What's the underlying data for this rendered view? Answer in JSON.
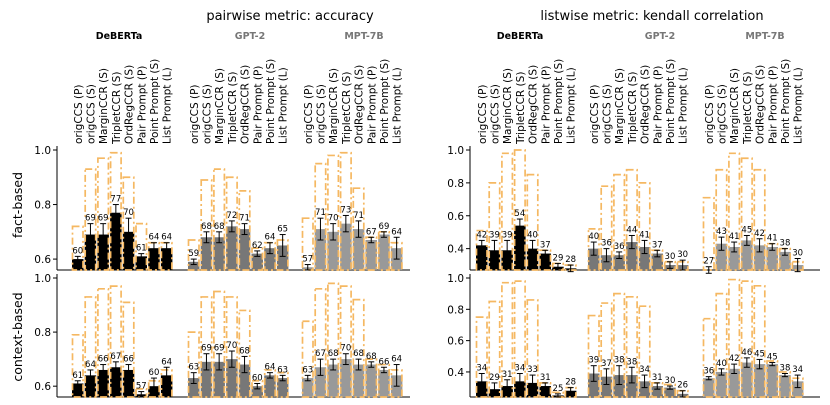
{
  "chart_data": {
    "type": "bar",
    "models": [
      {
        "name": "DeBERTa",
        "color": "#000000"
      },
      {
        "name": "GPT-2",
        "color": "#777777"
      },
      {
        "name": "MPT-7B",
        "color": "#999999"
      }
    ],
    "methods": [
      "origCCS (P)",
      "origCCS (S)",
      "MarginCCR (S)",
      "TripletCCR (S)",
      "OrdRegCCR (S)",
      "Pair Prompt (P)",
      "Point Prompt (S)",
      "List Prompt (L)"
    ],
    "columns": [
      {
        "title": "pairwise metric: accuracy"
      },
      {
        "title": "listwise metric: kendall correlation"
      }
    ],
    "rows": [
      {
        "label": "fact-based"
      },
      {
        "label": "context-based"
      }
    ],
    "panels": [
      {
        "row": 0,
        "col": 0,
        "ylim": [
          0.56,
          1.0
        ],
        "yticks": [
          0.6,
          0.8,
          1.0
        ],
        "ytick_labels": [
          "0.6",
          "0.8",
          "1.0"
        ],
        "groups": [
          {
            "values": [
              0.6,
              0.69,
              0.69,
              0.77,
              0.7,
              0.61,
              0.64,
              0.64
            ],
            "labels": [
              "60",
              "69",
              "69",
              "77",
              "70",
              "61",
              "64",
              "64"
            ],
            "errors": [
              0.01,
              0.04,
              0.04,
              0.03,
              0.05,
              0.01,
              0.02,
              0.02
            ],
            "upper": [
              0.72,
              0.93,
              0.97,
              0.99,
              0.9,
              0.73,
              0.66,
              0.66
            ]
          },
          {
            "values": [
              0.59,
              0.68,
              0.68,
              0.72,
              0.71,
              0.62,
              0.64,
              0.65
            ],
            "labels": [
              "59",
              "68",
              "68",
              "72",
              "71",
              "62",
              "64",
              "65"
            ],
            "errors": [
              0.01,
              0.02,
              0.02,
              0.02,
              0.02,
              0.01,
              0.02,
              0.04
            ],
            "upper": [
              0.67,
              0.89,
              0.93,
              0.9,
              0.85,
              0.64,
              0.66,
              0.67
            ]
          },
          {
            "values": [
              0.57,
              0.71,
              0.7,
              0.73,
              0.71,
              0.67,
              0.69,
              0.64
            ],
            "labels": [
              "57",
              "71",
              "70",
              "73",
              "71",
              "67",
              "69",
              "64"
            ],
            "errors": [
              0.01,
              0.04,
              0.03,
              0.03,
              0.03,
              0.01,
              0.01,
              0.04
            ],
            "upper": [
              0.75,
              0.95,
              0.98,
              0.99,
              0.86,
              0.68,
              0.7,
              0.66
            ]
          }
        ]
      },
      {
        "row": 0,
        "col": 1,
        "ylim": [
          0.27,
          1.0
        ],
        "yticks": [
          0.4,
          0.6,
          0.8,
          1.0
        ],
        "ytick_labels": [
          "0.4",
          "0.6",
          "0.8",
          "1.0"
        ],
        "groups": [
          {
            "values": [
              0.42,
              0.39,
              0.39,
              0.54,
              0.4,
              0.37,
              0.29,
              0.28
            ],
            "labels": [
              "42",
              "39",
              "39",
              "54",
              "40",
              "37",
              "29",
              "28"
            ],
            "errors": [
              0.03,
              0.06,
              0.06,
              0.04,
              0.05,
              0.02,
              0.02,
              0.02
            ],
            "upper": [
              0.51,
              0.8,
              0.98,
              1.0,
              0.85,
              0.39,
              0.31,
              0.3
            ]
          },
          {
            "values": [
              0.4,
              0.36,
              0.36,
              0.44,
              0.41,
              0.37,
              0.3,
              0.3
            ],
            "labels": [
              "40",
              "36",
              "36",
              "44",
              "41",
              "37",
              "30",
              "30"
            ],
            "errors": [
              0.04,
              0.04,
              0.02,
              0.04,
              0.04,
              0.02,
              0.02,
              0.03
            ],
            "upper": [
              0.52,
              0.78,
              0.85,
              0.88,
              0.8,
              0.39,
              0.32,
              0.32
            ]
          },
          {
            "values": [
              0.27,
              0.43,
              0.41,
              0.45,
              0.42,
              0.41,
              0.38,
              0.3
            ],
            "labels": [
              "27",
              "43",
              "41",
              "45",
              "42",
              "41",
              "38",
              "30"
            ],
            "errors": [
              0.02,
              0.04,
              0.03,
              0.03,
              0.04,
              0.02,
              0.02,
              0.04
            ],
            "upper": [
              0.71,
              0.88,
              0.98,
              0.95,
              0.88,
              0.43,
              0.4,
              0.32
            ]
          }
        ]
      },
      {
        "row": 1,
        "col": 0,
        "ylim": [
          0.56,
          1.0
        ],
        "yticks": [
          0.6,
          0.8,
          1.0
        ],
        "ytick_labels": [
          "0.6",
          "0.8",
          "1.0"
        ],
        "groups": [
          {
            "values": [
              0.61,
              0.64,
              0.66,
              0.67,
              0.66,
              0.57,
              0.6,
              0.64
            ],
            "labels": [
              "61",
              "64",
              "66",
              "67",
              "66",
              "57",
              "60",
              "64"
            ],
            "errors": [
              0.01,
              0.02,
              0.02,
              0.02,
              0.02,
              0.01,
              0.03,
              0.03
            ],
            "upper": [
              0.79,
              0.93,
              0.96,
              0.97,
              0.91,
              0.59,
              0.62,
              0.66
            ]
          },
          {
            "values": [
              0.63,
              0.69,
              0.69,
              0.7,
              0.68,
              0.6,
              0.64,
              0.63
            ],
            "labels": [
              "63",
              "69",
              "69",
              "70",
              "68",
              "60",
              "64",
              "63"
            ],
            "errors": [
              0.02,
              0.03,
              0.03,
              0.03,
              0.03,
              0.01,
              0.01,
              0.01
            ],
            "upper": [
              0.8,
              0.93,
              0.95,
              0.93,
              0.88,
              0.62,
              0.66,
              0.65
            ]
          },
          {
            "values": [
              0.63,
              0.67,
              0.68,
              0.7,
              0.68,
              0.68,
              0.66,
              0.64
            ],
            "labels": [
              "63",
              "67",
              "68",
              "70",
              "68",
              "68",
              "66",
              "64"
            ],
            "errors": [
              0.01,
              0.03,
              0.02,
              0.02,
              0.02,
              0.01,
              0.01,
              0.04
            ],
            "upper": [
              0.84,
              0.96,
              0.98,
              0.97,
              0.92,
              0.7,
              0.68,
              0.66
            ]
          }
        ]
      },
      {
        "row": 1,
        "col": 1,
        "ylim": [
          0.24,
          1.0
        ],
        "yticks": [
          0.4,
          0.6,
          0.8,
          1.0
        ],
        "ytick_labels": [
          "0.4",
          "0.6",
          "0.8",
          "1.0"
        ],
        "groups": [
          {
            "values": [
              0.34,
              0.29,
              0.31,
              0.34,
              0.33,
              0.31,
              0.25,
              0.28
            ],
            "labels": [
              "34",
              "29",
              "31",
              "34",
              "33",
              "31",
              "25",
              "28"
            ],
            "errors": [
              0.05,
              0.04,
              0.04,
              0.05,
              0.05,
              0.02,
              0.01,
              0.02
            ],
            "upper": [
              0.75,
              0.85,
              0.97,
              0.98,
              0.86,
              0.33,
              0.27,
              0.3
            ]
          },
          {
            "values": [
              0.39,
              0.37,
              0.38,
              0.38,
              0.34,
              0.31,
              0.3,
              0.26
            ],
            "labels": [
              "39",
              "37",
              "38",
              "38",
              "34",
              "31",
              "30",
              "26"
            ],
            "errors": [
              0.05,
              0.05,
              0.06,
              0.05,
              0.04,
              0.02,
              0.01,
              0.02
            ],
            "upper": [
              0.76,
              0.84,
              0.9,
              0.88,
              0.82,
              0.33,
              0.32,
              0.28
            ]
          },
          {
            "values": [
              0.36,
              0.4,
              0.42,
              0.46,
              0.45,
              0.45,
              0.38,
              0.34
            ],
            "labels": [
              "36",
              "40",
              "42",
              "46",
              "45",
              "45",
              "38",
              "34"
            ],
            "errors": [
              0.01,
              0.02,
              0.03,
              0.03,
              0.03,
              0.01,
              0.01,
              0.04
            ],
            "upper": [
              0.74,
              0.9,
              0.99,
              0.98,
              0.95,
              0.47,
              0.4,
              0.36
            ]
          }
        ]
      }
    ]
  }
}
